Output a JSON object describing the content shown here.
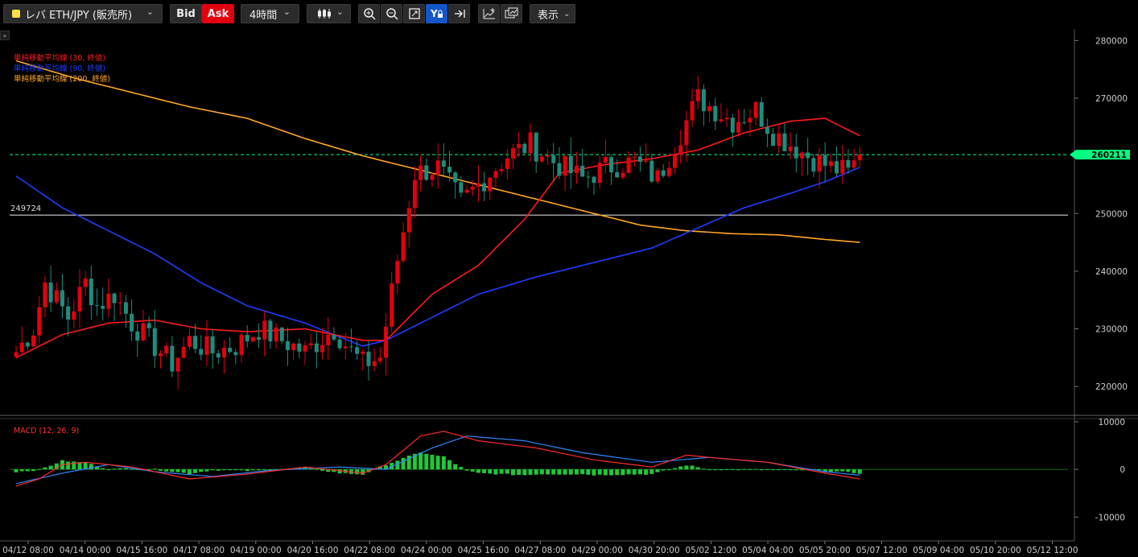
{
  "toolbar": {
    "symbol": "レバ ETH/JPY (販売所)",
    "bid_label": "Bid",
    "ask_label": "Ask",
    "timeframe": "4時間",
    "display_label": "表示",
    "icons": [
      "candlestick-icon",
      "zoom-in-icon",
      "zoom-out-icon",
      "fit-icon",
      "y-lock-icon",
      "scroll-end-icon",
      "add-indicator-icon",
      "compare-icon"
    ]
  },
  "price_pane": {
    "y_ticks": [
      "280000",
      "270000",
      "260000",
      "250000",
      "240000",
      "230000",
      "220000"
    ],
    "current_price": "260211",
    "hline_label": "249724",
    "legend": [
      {
        "text": "単純移動平均線 (30, 終値)",
        "color": "#ff1a1a"
      },
      {
        "text": "単純移動平均線 (90, 終値)",
        "color": "#1f3dff"
      },
      {
        "text": "単純移動平均線 (200, 終値)",
        "color": "#ffa726"
      }
    ]
  },
  "macd_pane": {
    "label": "MACD (12, 26, 9)",
    "y_ticks": [
      "10000",
      "0",
      "-10000"
    ]
  },
  "x_ticks": [
    "04/12 08:00",
    "04/14 00:00",
    "04/15 16:00",
    "04/17 08:00",
    "04/19 00:00",
    "04/20 16:00",
    "04/22 08:00",
    "04/24 00:00",
    "04/25 16:00",
    "04/27 08:00",
    "04/29 00:00",
    "04/30 20:00",
    "05/02 12:00",
    "05/04 04:00",
    "05/05 20:00",
    "05/07 12:00",
    "05/09 04:00",
    "05/10 20:00",
    "05/12 12:00"
  ],
  "colors": {
    "up": "#e2000f",
    "down": "#1e8c7d",
    "ma30": "#ff1a1a",
    "ma90": "#1f3dff",
    "ma200": "#ffa726",
    "macd": "#ff2a2a",
    "signal": "#2f86ff",
    "hist": "#22c63a",
    "current": "#00ff80"
  },
  "chart_data": {
    "type": "candlestick",
    "timeframe": "4h",
    "y_range": [
      215000,
      282000
    ],
    "close_path": [
      [
        0,
        226000
      ],
      [
        3,
        230000
      ],
      [
        5,
        238000
      ],
      [
        7,
        235000
      ],
      [
        9,
        232000
      ],
      [
        12,
        238000
      ],
      [
        14,
        234000
      ],
      [
        17,
        236000
      ],
      [
        20,
        231000
      ],
      [
        23,
        228000
      ],
      [
        27,
        224000
      ],
      [
        30,
        228000
      ],
      [
        34,
        226000
      ],
      [
        38,
        227000
      ],
      [
        42,
        230000
      ],
      [
        46,
        228000
      ],
      [
        50,
        226000
      ],
      [
        55,
        230000
      ],
      [
        58,
        226000
      ],
      [
        60,
        224000
      ],
      [
        63,
        225000
      ],
      [
        66,
        242000
      ],
      [
        69,
        257000
      ],
      [
        73,
        258000
      ],
      [
        77,
        252000
      ],
      [
        81,
        256000
      ],
      [
        85,
        260000
      ],
      [
        89,
        262000
      ],
      [
        93,
        259000
      ],
      [
        98,
        256000
      ],
      [
        102,
        258000
      ],
      [
        107,
        259000
      ],
      [
        111,
        256000
      ],
      [
        115,
        264000
      ],
      [
        118,
        270000
      ],
      [
        121,
        268000
      ],
      [
        124,
        266000
      ],
      [
        128,
        268000
      ],
      [
        131,
        264000
      ],
      [
        134,
        262000
      ],
      [
        137,
        260000
      ],
      [
        141,
        258000
      ],
      [
        144,
        257000
      ],
      [
        146,
        260200
      ]
    ],
    "ma30": [
      [
        0,
        225000
      ],
      [
        8,
        229000
      ],
      [
        16,
        231000
      ],
      [
        24,
        231500
      ],
      [
        32,
        230000
      ],
      [
        40,
        229500
      ],
      [
        50,
        230000
      ],
      [
        60,
        228000
      ],
      [
        64,
        228000
      ],
      [
        72,
        236000
      ],
      [
        80,
        241000
      ],
      [
        88,
        249000
      ],
      [
        94,
        257000
      ],
      [
        102,
        258500
      ],
      [
        110,
        259500
      ],
      [
        118,
        261000
      ],
      [
        126,
        264000
      ],
      [
        134,
        266000
      ],
      [
        140,
        266500
      ],
      [
        146,
        263500
      ]
    ],
    "ma90": [
      [
        0,
        256500
      ],
      [
        8,
        251000
      ],
      [
        16,
        247000
      ],
      [
        24,
        243000
      ],
      [
        32,
        238000
      ],
      [
        40,
        234000
      ],
      [
        50,
        231000
      ],
      [
        60,
        227000
      ],
      [
        64,
        228000
      ],
      [
        72,
        232000
      ],
      [
        80,
        236000
      ],
      [
        90,
        239000
      ],
      [
        100,
        241500
      ],
      [
        110,
        244000
      ],
      [
        118,
        247500
      ],
      [
        126,
        251000
      ],
      [
        134,
        253500
      ],
      [
        140,
        255500
      ],
      [
        146,
        258000
      ]
    ],
    "ma200": [
      [
        0,
        276500
      ],
      [
        10,
        273500
      ],
      [
        20,
        271000
      ],
      [
        30,
        268500
      ],
      [
        40,
        266500
      ],
      [
        50,
        263000
      ],
      [
        60,
        260000
      ],
      [
        70,
        257500
      ],
      [
        80,
        255000
      ],
      [
        90,
        252500
      ],
      [
        100,
        250000
      ],
      [
        108,
        248000
      ],
      [
        116,
        247000
      ],
      [
        124,
        246500
      ],
      [
        132,
        246300
      ],
      [
        140,
        245500
      ],
      [
        146,
        245000
      ]
    ],
    "macd": {
      "y_range": [
        -14000,
        10500
      ],
      "macd_path": [
        [
          0,
          -3500
        ],
        [
          4,
          -2000
        ],
        [
          8,
          1000
        ],
        [
          12,
          1500
        ],
        [
          20,
          500
        ],
        [
          30,
          -2000
        ],
        [
          40,
          -1000
        ],
        [
          50,
          500
        ],
        [
          60,
          -800
        ],
        [
          64,
          1000
        ],
        [
          70,
          7000
        ],
        [
          74,
          8000
        ],
        [
          80,
          6000
        ],
        [
          90,
          4500
        ],
        [
          100,
          2000
        ],
        [
          110,
          500
        ],
        [
          116,
          3000
        ],
        [
          120,
          2500
        ],
        [
          130,
          1500
        ],
        [
          140,
          -800
        ],
        [
          146,
          -2000
        ]
      ],
      "signal_path": [
        [
          0,
          -3000
        ],
        [
          8,
          -800
        ],
        [
          16,
          1000
        ],
        [
          24,
          -500
        ],
        [
          34,
          -1500
        ],
        [
          44,
          -200
        ],
        [
          56,
          500
        ],
        [
          64,
          0
        ],
        [
          72,
          4500
        ],
        [
          78,
          7000
        ],
        [
          88,
          6000
        ],
        [
          98,
          3500
        ],
        [
          110,
          1500
        ],
        [
          120,
          2500
        ],
        [
          130,
          1500
        ],
        [
          140,
          -500
        ],
        [
          146,
          -1200
        ]
      ]
    }
  }
}
